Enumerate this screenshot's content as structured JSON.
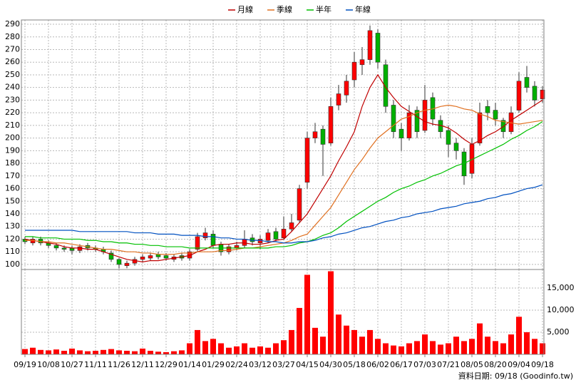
{
  "chart_data": [
    {
      "type": "candlestick",
      "categories": [
        "09/19",
        null,
        null,
        "10/08",
        null,
        null,
        "10/27",
        null,
        null,
        "11/11",
        null,
        null,
        "11/26",
        null,
        null,
        "12/11",
        null,
        null,
        "12/29",
        null,
        null,
        "01/14",
        null,
        null,
        "01/29",
        null,
        null,
        "02/24",
        null,
        null,
        "03/12",
        null,
        null,
        "03/27",
        null,
        null,
        "04/15",
        null,
        null,
        "04/30",
        null,
        null,
        "05/18",
        null,
        null,
        "06/02",
        null,
        null,
        "06/17",
        null,
        null,
        "07/03",
        null,
        null,
        "07/21",
        null,
        null,
        "08/05",
        null,
        null,
        "08/20",
        null,
        null,
        "09/04",
        null,
        null,
        "09/18"
      ],
      "open": [
        120,
        117,
        120,
        117,
        115,
        113,
        113,
        111,
        115,
        113,
        112,
        109,
        104,
        99,
        101,
        104,
        105,
        108,
        107,
        104,
        107,
        105,
        112,
        121,
        124,
        116,
        110,
        113,
        115,
        121,
        117,
        119,
        126,
        121,
        128,
        135,
        165,
        200,
        207,
        196,
        226,
        234,
        246,
        258,
        262,
        283,
        258,
        226,
        207,
        200,
        222,
        206,
        232,
        214,
        206,
        196,
        189,
        172,
        196,
        225,
        222,
        214,
        205,
        222,
        248,
        241,
        231
      ],
      "high": [
        122,
        122,
        122,
        119,
        117,
        115,
        115,
        116,
        117,
        115,
        114,
        111,
        105,
        103,
        106,
        108,
        109,
        110,
        109,
        108,
        109,
        112,
        125,
        129,
        127,
        118,
        116,
        118,
        127,
        124,
        123,
        128,
        129,
        138,
        140,
        163,
        205,
        212,
        210,
        232,
        242,
        250,
        268,
        272,
        289,
        286,
        262,
        230,
        212,
        226,
        225,
        242,
        236,
        218,
        210,
        200,
        192,
        200,
        228,
        230,
        228,
        216,
        225,
        252,
        257,
        245,
        241
      ],
      "low": [
        116,
        115,
        115,
        113,
        111,
        110,
        108,
        109,
        111,
        110,
        108,
        102,
        97,
        97,
        99,
        102,
        103,
        104,
        103,
        102,
        103,
        103,
        110,
        119,
        113,
        107,
        108,
        111,
        113,
        115,
        112,
        117,
        118,
        120,
        126,
        133,
        160,
        196,
        170,
        194,
        222,
        228,
        240,
        250,
        258,
        255,
        220,
        200,
        190,
        198,
        200,
        204,
        210,
        200,
        185,
        183,
        163,
        168,
        194,
        214,
        210,
        200,
        203,
        220,
        236,
        225,
        228
      ],
      "close": [
        118,
        120,
        117,
        115,
        113,
        112,
        111,
        114,
        113,
        112,
        110,
        104,
        100,
        101,
        104,
        106,
        107,
        106,
        105,
        106,
        105,
        110,
        122,
        125,
        115,
        110,
        114,
        115,
        120,
        118,
        120,
        125,
        120,
        128,
        133,
        160,
        200,
        205,
        195,
        225,
        235,
        245,
        260,
        262,
        285,
        260,
        225,
        205,
        200,
        220,
        205,
        230,
        215,
        205,
        195,
        190,
        170,
        195,
        220,
        220,
        215,
        205,
        220,
        245,
        240,
        230,
        238
      ],
      "up_color": "#ff0000",
      "down_color": "#00b000",
      "series": [
        {
          "name": "月線",
          "color": "#c00000",
          "values": [
            120,
            119,
            118,
            117,
            116,
            114,
            113,
            113,
            112,
            112,
            110,
            108,
            106,
            104,
            103,
            102,
            103,
            103,
            104,
            105,
            106,
            107,
            110,
            112,
            115,
            116,
            116,
            117,
            117,
            116,
            116,
            117,
            119,
            120,
            126,
            133,
            140,
            150,
            160,
            170,
            182,
            193,
            205,
            225,
            240,
            250,
            240,
            232,
            225,
            221,
            217,
            213,
            211,
            210,
            208,
            204,
            199,
            195,
            198,
            202,
            205,
            209,
            214,
            218,
            222,
            226,
            230
          ]
        },
        {
          "name": "季線",
          "color": "#e07020",
          "values": [
            119,
            119,
            118,
            118,
            117,
            117,
            116,
            115,
            114,
            113,
            112,
            112,
            111,
            110,
            110,
            109,
            109,
            108,
            108,
            108,
            109,
            109,
            110,
            110,
            110,
            111,
            111,
            112,
            113,
            113,
            114,
            115,
            116,
            117,
            119,
            122,
            124,
            131,
            138,
            145,
            155,
            165,
            175,
            183,
            192,
            200,
            205,
            210,
            215,
            217,
            220,
            222,
            223,
            225,
            226,
            225,
            223,
            222,
            219,
            217,
            214,
            213,
            212,
            211,
            212,
            213,
            214
          ]
        },
        {
          "name": "半年",
          "color": "#00c000",
          "values": [
            122,
            122,
            121,
            121,
            121,
            120,
            120,
            120,
            119,
            119,
            118,
            118,
            117,
            117,
            116,
            116,
            115,
            115,
            114,
            114,
            114,
            113,
            113,
            113,
            113,
            113,
            113,
            113,
            113,
            113,
            113,
            113,
            114,
            114,
            115,
            117,
            118,
            120,
            123,
            125,
            129,
            134,
            138,
            142,
            146,
            150,
            153,
            157,
            160,
            162,
            165,
            167,
            170,
            172,
            175,
            178,
            180,
            183,
            186,
            189,
            192,
            195,
            199,
            202,
            206,
            209,
            213
          ]
        },
        {
          "name": "年線",
          "color": "#0050c0",
          "values": [
            127,
            127,
            127,
            127,
            127,
            127,
            127,
            126,
            126,
            126,
            126,
            126,
            126,
            126,
            125,
            125,
            125,
            124,
            124,
            124,
            123,
            123,
            123,
            122,
            122,
            121,
            121,
            120,
            120,
            119,
            119,
            118,
            118,
            117,
            117,
            118,
            118,
            119,
            121,
            122,
            124,
            125,
            127,
            129,
            130,
            132,
            134,
            135,
            137,
            138,
            140,
            141,
            142,
            144,
            145,
            146,
            148,
            149,
            150,
            152,
            153,
            155,
            156,
            158,
            160,
            161,
            163
          ]
        }
      ],
      "ylim": [
        96,
        293.4
      ],
      "yticks": [
        100,
        110,
        120,
        130,
        140,
        150,
        160,
        170,
        180,
        190,
        200,
        210,
        220,
        230,
        240,
        250,
        260,
        270,
        280,
        290
      ],
      "grid": true,
      "legend": "top"
    },
    {
      "type": "bar",
      "values": [
        1200,
        1500,
        1000,
        900,
        1100,
        800,
        1300,
        900,
        700,
        800,
        1000,
        1200,
        900,
        800,
        700,
        1300,
        800,
        600,
        500,
        700,
        900,
        2500,
        5500,
        3000,
        3500,
        2500,
        1500,
        1800,
        2500,
        1500,
        1800,
        1500,
        2500,
        3200,
        5500,
        10500,
        18000,
        6000,
        4000,
        18800,
        9000,
        6500,
        5500,
        4000,
        5500,
        3500,
        2500,
        2000,
        1800,
        2500,
        3000,
        4500,
        3000,
        2200,
        2500,
        4000,
        3000,
        3500,
        7000,
        4000,
        3000,
        2500,
        4500,
        8500,
        5000,
        3500,
        2500
      ],
      "color": "#ff0000",
      "ylim": [
        0,
        19200
      ],
      "yticks": [
        {
          "value": 5000,
          "label": "5,000"
        },
        {
          "value": 10000,
          "label": "10,000"
        },
        {
          "value": 15000,
          "label": "15,000"
        }
      ],
      "grid": true
    }
  ],
  "footer": "資料日期: 09/18 (Goodinfo.tw)"
}
